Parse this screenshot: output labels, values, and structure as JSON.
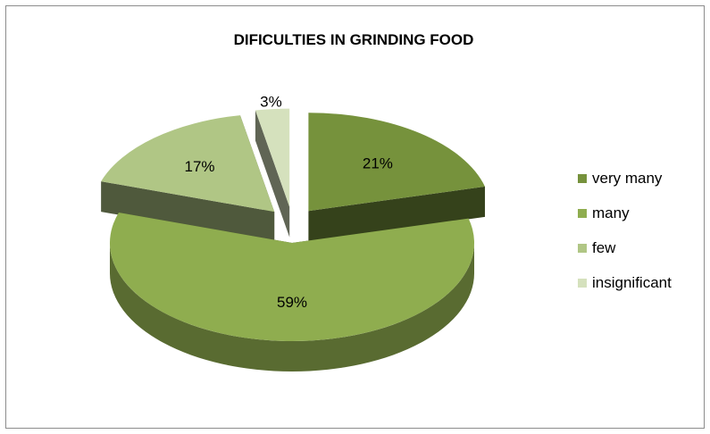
{
  "chart_data": {
    "type": "pie",
    "style": "3d-exploded",
    "title": "DIFICULTIES IN GRINDING FOOD",
    "categories": [
      "very many",
      "many",
      "few",
      "insignificant"
    ],
    "values": [
      21,
      59,
      17,
      3
    ],
    "labels": [
      "21%",
      "59%",
      "17%",
      "3%"
    ],
    "colors": [
      "#76923c",
      "#8fad4f",
      "#b0c685",
      "#d5e1bd"
    ],
    "legend_position": "right"
  }
}
